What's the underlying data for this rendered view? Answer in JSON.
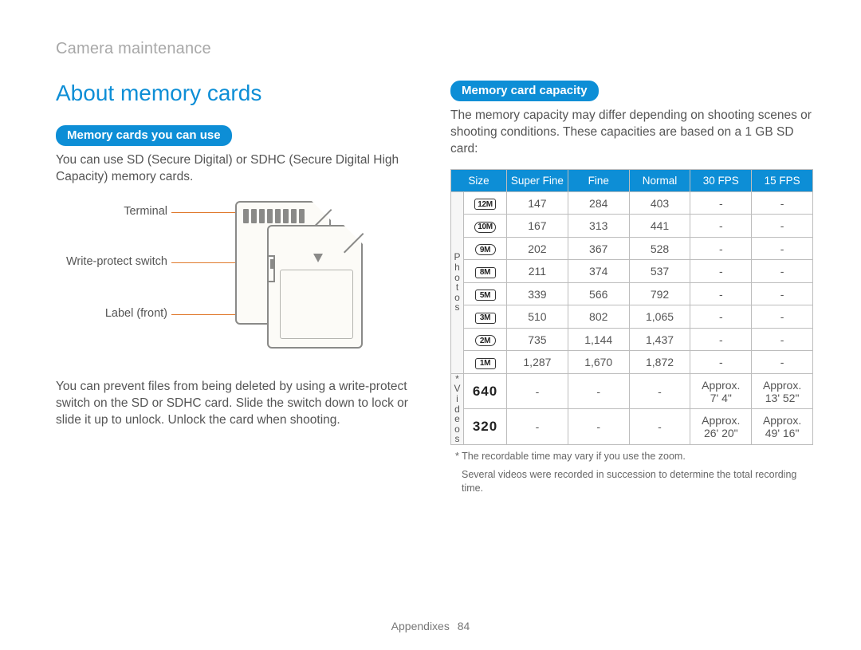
{
  "breadcrumb": "Camera maintenance",
  "title": "About memory cards",
  "left": {
    "pill": "Memory cards you can use",
    "p1": "You can use SD (Secure Digital) or SDHC (Secure Digital High Capacity) memory cards.",
    "labels": {
      "terminal": "Terminal",
      "wps": "Write-protect switch",
      "label": "Label (front)"
    },
    "p2": "You can prevent files from being deleted by using a write-protect switch on the SD or SDHC card. Slide the switch down to lock or slide it up to unlock. Unlock the card when shooting."
  },
  "right": {
    "pill": "Memory card capacity",
    "p1": "The memory capacity may differ depending on shooting scenes or shooting conditions. These capacities are based on a 1 GB SD card:",
    "headers": [
      "Size",
      "Super Fine",
      "Fine",
      "Normal",
      "30 FPS",
      "15 FPS"
    ],
    "groups": {
      "photos": "Photos",
      "videos": "Videos"
    },
    "photo_rows": [
      {
        "size": "12M",
        "badge": "sq",
        "sf": "147",
        "f": "284",
        "n": "403",
        "a": "-",
        "b": "-"
      },
      {
        "size": "10M",
        "badge": "rd",
        "sf": "167",
        "f": "313",
        "n": "441",
        "a": "-",
        "b": "-"
      },
      {
        "size": "9M",
        "badge": "rd",
        "sf": "202",
        "f": "367",
        "n": "528",
        "a": "-",
        "b": "-"
      },
      {
        "size": "8M",
        "badge": "sq",
        "sf": "211",
        "f": "374",
        "n": "537",
        "a": "-",
        "b": "-"
      },
      {
        "size": "5M",
        "badge": "sq",
        "sf": "339",
        "f": "566",
        "n": "792",
        "a": "-",
        "b": "-"
      },
      {
        "size": "3M",
        "badge": "sq",
        "sf": "510",
        "f": "802",
        "n": "1,065",
        "a": "-",
        "b": "-"
      },
      {
        "size": "2M",
        "badge": "rd",
        "sf": "735",
        "f": "1,144",
        "n": "1,437",
        "a": "-",
        "b": "-"
      },
      {
        "size": "1M",
        "badge": "sq",
        "sf": "1,287",
        "f": "1,670",
        "n": "1,872",
        "a": "-",
        "b": "-"
      }
    ],
    "video_rows": [
      {
        "size": "640",
        "sf": "-",
        "f": "-",
        "n": "-",
        "a": "Approx. 7' 4\"",
        "b": "Approx. 13' 52\""
      },
      {
        "size": "320",
        "sf": "-",
        "f": "-",
        "n": "-",
        "a": "Approx. 26' 20\"",
        "b": "Approx. 49' 16\""
      }
    ],
    "footnote1": "* The recordable time may vary if you use the zoom.",
    "footnote2": "Several videos were recorded in succession to determine the total recording time.",
    "videos_mark": "*"
  },
  "footer": {
    "section": "Appendixes",
    "page": "84"
  }
}
